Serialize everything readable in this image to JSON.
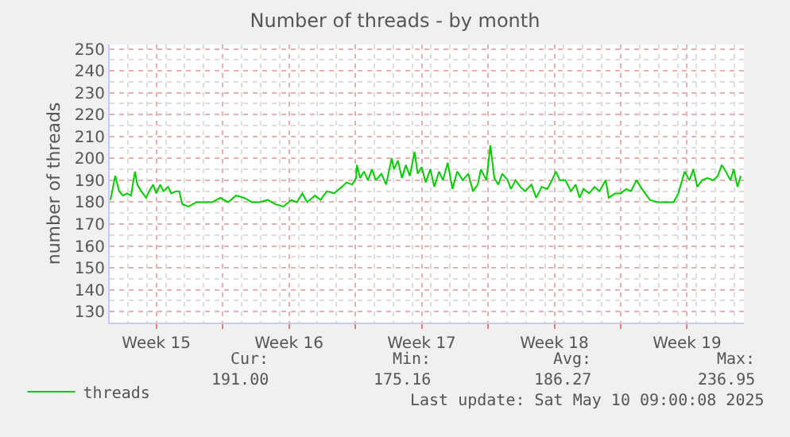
{
  "chart_data": {
    "type": "line",
    "title": "Number of threads - by month",
    "ylabel": "number of threads",
    "x": [
      "2025-04-08T02:00",
      "2025-04-08T08:00",
      "2025-04-08T13:00",
      "2025-04-08T18:00",
      "2025-04-08T23:00",
      "2025-04-09T04:00",
      "2025-04-09T09:00",
      "2025-04-09T12:00",
      "2025-04-09T17:00",
      "2025-04-09T23:00",
      "2025-04-10T03:00",
      "2025-04-10T08:00",
      "2025-04-10T12:00",
      "2025-04-10T17:00",
      "2025-04-10T21:00",
      "2025-04-11T03:00",
      "2025-04-11T07:00",
      "2025-04-11T13:00",
      "2025-04-11T17:00",
      "2025-04-11T21:00",
      "2025-04-12T05:00",
      "2025-04-12T15:00",
      "2025-04-13T01:00",
      "2025-04-13T11:00",
      "2025-04-13T21:00",
      "2025-04-14T07:00",
      "2025-04-14T17:00",
      "2025-04-15T03:00",
      "2025-04-15T13:00",
      "2025-04-15T23:00",
      "2025-04-16T09:00",
      "2025-04-16T19:00",
      "2025-04-17T05:00",
      "2025-04-17T15:00",
      "2025-04-17T22:00",
      "2025-04-18T05:00",
      "2025-04-18T11:00",
      "2025-04-18T21:00",
      "2025-04-19T04:00",
      "2025-04-19T12:00",
      "2025-04-19T21:00",
      "2025-04-20T07:00",
      "2025-04-20T13:00",
      "2025-04-20T20:00",
      "2025-04-21T01:00",
      "2025-04-21T02:00",
      "2025-04-21T06:00",
      "2025-04-21T11:00",
      "2025-04-21T16:00",
      "2025-04-21T21:00",
      "2025-04-22T02:00",
      "2025-04-22T09:00",
      "2025-04-22T15:00",
      "2025-04-22T22:00",
      "2025-04-23T01:00",
      "2025-04-23T06:00",
      "2025-04-23T11:00",
      "2025-04-23T16:00",
      "2025-04-23T21:00",
      "2025-04-24T03:00",
      "2025-04-24T07:00",
      "2025-04-24T12:00",
      "2025-04-24T17:00",
      "2025-04-24T23:00",
      "2025-04-25T04:00",
      "2025-04-25T10:00",
      "2025-04-25T15:00",
      "2025-04-25T21:00",
      "2025-04-26T03:00",
      "2025-04-26T09:00",
      "2025-04-26T16:00",
      "2025-04-26T23:00",
      "2025-04-27T05:00",
      "2025-04-27T11:00",
      "2025-04-27T15:00",
      "2025-04-27T22:00",
      "2025-04-28T03:00",
      "2025-04-28T08:00",
      "2025-04-28T13:00",
      "2025-04-28T18:00",
      "2025-04-29T01:00",
      "2025-04-29T05:00",
      "2025-04-29T11:00",
      "2025-04-29T17:00",
      "2025-04-29T23:00",
      "2025-04-30T07:00",
      "2025-04-30T13:00",
      "2025-04-30T20:00",
      "2025-05-01T03:00",
      "2025-05-01T09:00",
      "2025-05-01T14:00",
      "2025-05-01T19:00",
      "2025-05-02T02:00",
      "2025-05-02T09:00",
      "2025-05-02T15:00",
      "2025-05-02T20:00",
      "2025-05-03T01:00",
      "2025-05-03T08:00",
      "2025-05-03T15:00",
      "2025-05-03T21:00",
      "2025-05-04T05:00",
      "2025-05-04T09:00",
      "2025-05-04T17:00",
      "2025-05-05T00:00",
      "2025-05-05T07:00",
      "2025-05-05T13:00",
      "2025-05-05T20:00",
      "2025-05-06T03:00",
      "2025-05-06T13:00",
      "2025-05-06T23:00",
      "2025-05-07T09:00",
      "2025-05-07T19:00",
      "2025-05-08T01:00",
      "2025-05-08T09:00",
      "2025-05-08T15:00",
      "2025-05-08T20:00",
      "2025-05-09T01:00",
      "2025-05-09T07:00",
      "2025-05-09T14:00",
      "2025-05-09T21:00",
      "2025-05-10T03:00",
      "2025-05-10T08:00",
      "2025-05-10T13:00",
      "2025-05-10T19:00",
      "2025-05-10T23:00",
      "2025-05-11T04:00",
      "2025-05-11T08:00"
    ],
    "series": [
      {
        "name": "threads",
        "color": "#00cc00",
        "values": [
          181,
          192,
          185,
          183,
          184,
          183,
          194,
          188,
          185,
          182,
          185,
          188,
          184,
          188,
          185,
          187,
          184,
          185,
          185,
          179,
          178,
          180,
          180,
          180,
          182,
          180,
          183,
          182,
          180,
          180,
          181,
          179,
          178,
          181,
          180,
          184,
          180,
          183,
          181,
          185,
          184,
          187,
          189,
          188,
          191,
          197,
          191,
          194,
          190,
          195,
          190,
          193,
          188,
          200,
          195,
          199,
          191,
          197,
          192,
          203,
          193,
          196,
          189,
          195,
          187,
          194,
          190,
          198,
          186,
          194,
          190,
          193,
          185,
          188,
          195,
          190,
          206,
          191,
          188,
          193,
          190,
          186,
          190,
          187,
          185,
          188,
          182,
          187,
          186,
          190,
          194,
          190,
          190,
          185,
          188,
          182,
          186,
          184,
          187,
          185,
          190,
          182,
          184,
          184,
          186,
          185,
          190,
          186,
          181,
          180,
          180,
          180,
          184,
          194,
          190,
          195,
          187,
          190,
          191,
          190,
          192,
          197,
          194,
          190,
          195,
          187,
          192
        ]
      }
    ],
    "xlim": [
      "2025-04-08T01:00",
      "2025-05-11T12:00"
    ],
    "xticks": [
      {
        "value": "2025-04-10T12:00",
        "label": "Week 15"
      },
      {
        "value": "2025-04-14",
        "label": null
      },
      {
        "value": "2025-04-17T12:00",
        "label": "Week 16"
      },
      {
        "value": "2025-04-21",
        "label": null
      },
      {
        "value": "2025-04-24T12:00",
        "label": "Week 17"
      },
      {
        "value": "2025-04-28",
        "label": null
      },
      {
        "value": "2025-05-01T12:00",
        "label": "Week 18"
      },
      {
        "value": "2025-05-05",
        "label": null
      },
      {
        "value": "2025-05-08T12:00",
        "label": "Week 19"
      }
    ],
    "ylim": [
      125,
      252
    ],
    "yticks": [
      130,
      140,
      150,
      160,
      170,
      180,
      190,
      200,
      210,
      220,
      230,
      240,
      250
    ],
    "grid": true,
    "legend": "bottom left",
    "line_style": "solid",
    "marker": "none",
    "annotations": [
      "Cur:",
      "191.00",
      "Min:",
      "175.16",
      "Avg:",
      "186.27",
      "Max:",
      "236.95",
      "Last update: Sat May 10 09:00:08 2025"
    ]
  }
}
